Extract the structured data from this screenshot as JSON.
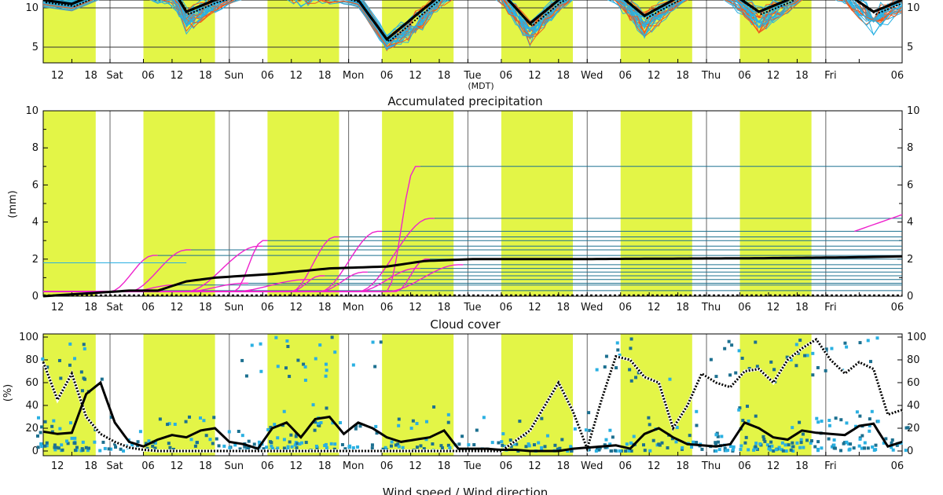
{
  "colors": {
    "daylight": "#e3f547",
    "ens_blue": "#2ab0e2",
    "ens_red": "#f05a1e",
    "ens_magenta": "#ee22cc",
    "ens_teal": "#1c7090",
    "mean": "#000000",
    "dotted": "#000000"
  },
  "time_axis": {
    "unit_label": "(MDT)",
    "ticks": [
      "12",
      "18",
      "Sat",
      "06",
      "12",
      "18",
      "Sun",
      "06",
      "12",
      "18",
      "Mon",
      "06",
      "12",
      "18",
      "Tue",
      "06",
      "12",
      "18",
      "Wed",
      "06",
      "12",
      "18",
      "Thu",
      "06",
      "12",
      "18",
      "Fri",
      "06"
    ]
  },
  "chart_data": [
    {
      "type": "line",
      "panel": "temperature",
      "title": "",
      "ylabel": "",
      "ylim": [
        3,
        11
      ],
      "yticks": [
        5,
        10
      ],
      "mean_series": {
        "x_hours": [
          0,
          6,
          12,
          18,
          24,
          27,
          30,
          36,
          42,
          48,
          54,
          60,
          66,
          72,
          78,
          84,
          90,
          96,
          102,
          108,
          114,
          120,
          126,
          132,
          138,
          144,
          150,
          156,
          162,
          168,
          174,
          180
        ],
        "values": [
          11,
          10.5,
          12,
          13,
          12,
          12.5,
          9.5,
          11,
          12,
          13,
          13,
          12,
          11,
          6,
          9,
          12,
          13,
          12,
          8,
          11,
          13,
          12,
          9,
          11,
          13,
          12,
          9.5,
          11,
          13,
          12,
          9.5,
          11
        ]
      },
      "spread_minima": [
        8.5,
        8.5,
        4.5,
        6,
        8,
        4.5,
        4
      ]
    },
    {
      "type": "line",
      "panel": "precipitation",
      "title": "Accumulated precipitation",
      "ylabel": "(mm)",
      "ylim": [
        0,
        10
      ],
      "yticks": [
        0,
        2,
        4,
        6,
        8,
        10
      ],
      "mean_series": {
        "x_hours": [
          0,
          12,
          18,
          24,
          30,
          36,
          48,
          60,
          72,
          80,
          90,
          96,
          110,
          150,
          170,
          180
        ],
        "values": [
          0,
          0.2,
          0.3,
          0.3,
          0.8,
          1.0,
          1.2,
          1.5,
          1.6,
          1.9,
          2.0,
          2.0,
          2.0,
          2.05,
          2.1,
          2.15
        ]
      },
      "member_plateaus": [
        0.3,
        0.6,
        0.7,
        0.9,
        1.1,
        1.3,
        1.5,
        1.7,
        2.0,
        2.2,
        2.5,
        2.7,
        3.0,
        3.2,
        3.5,
        4.2,
        7.0
      ]
    },
    {
      "type": "scatter",
      "panel": "cloud_cover",
      "title": "Cloud cover",
      "ylabel": "(%)",
      "ylim": [
        0,
        100
      ],
      "yticks": [
        0,
        20,
        40,
        60,
        80,
        100
      ],
      "mean_series": {
        "x_hours": [
          0,
          3,
          6,
          9,
          12,
          15,
          18,
          21,
          24,
          27,
          30,
          33,
          36,
          39,
          42,
          45,
          48,
          51,
          54,
          57,
          60,
          63,
          66,
          69,
          72,
          75,
          78,
          81,
          84,
          87,
          90,
          93,
          96,
          99,
          102,
          105,
          108,
          111,
          114,
          117,
          120,
          123,
          126,
          129,
          132,
          135,
          138,
          141,
          144,
          147,
          150,
          153,
          156,
          159,
          162,
          165,
          168,
          171,
          174,
          177,
          180
        ],
        "values": [
          17,
          15,
          16,
          50,
          60,
          25,
          8,
          4,
          10,
          14,
          12,
          18,
          20,
          8,
          6,
          2,
          20,
          25,
          12,
          28,
          30,
          15,
          25,
          20,
          12,
          8,
          10,
          12,
          18,
          2,
          2,
          2,
          1,
          1,
          0,
          0,
          0,
          2,
          3,
          4,
          5,
          2,
          15,
          20,
          12,
          6,
          5,
          4,
          6,
          25,
          20,
          12,
          10,
          18,
          16,
          15,
          14,
          22,
          24,
          4,
          8
        ]
      },
      "dotted_series": {
        "x_hours": [
          0,
          3,
          6,
          9,
          12,
          15,
          18,
          21,
          24,
          30,
          36,
          42,
          48,
          54,
          60,
          66,
          72,
          78,
          84,
          90,
          96,
          102,
          108,
          111,
          114,
          117,
          120,
          123,
          126,
          129,
          132,
          135,
          138,
          141,
          144,
          147,
          150,
          153,
          156,
          159,
          162,
          165,
          168,
          171,
          174,
          177,
          180
        ],
        "values": [
          78,
          45,
          68,
          30,
          15,
          8,
          3,
          1,
          0,
          0,
          0,
          0,
          0,
          0,
          0,
          0,
          0,
          0,
          0,
          0,
          0,
          18,
          60,
          35,
          2,
          45,
          83,
          80,
          65,
          60,
          20,
          40,
          68,
          60,
          56,
          70,
          72,
          60,
          80,
          90,
          98,
          80,
          68,
          78,
          72,
          32,
          36
        ]
      }
    }
  ],
  "bottom_title": "Wind speed / Wind direction"
}
